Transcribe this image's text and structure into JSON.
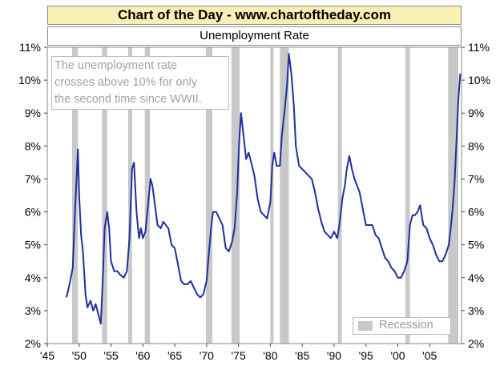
{
  "header": {
    "title": "Chart of the Day - www.chartoftheday.com"
  },
  "chart_data": {
    "type": "line",
    "title": "Unemployment Rate",
    "annotation_lines": [
      "The unemployment rate",
      "crosses above 10% for only",
      "the second time since WWII."
    ],
    "legend": {
      "label": "Recession",
      "color": "#c8c8c8",
      "position": "bottom-right"
    },
    "xlim": [
      1945,
      2010
    ],
    "ylim": [
      2,
      11
    ],
    "y_ticks": [
      2,
      3,
      4,
      5,
      6,
      7,
      8,
      9,
      10,
      11
    ],
    "y_tick_labels": [
      "2%",
      "3%",
      "4%",
      "5%",
      "6%",
      "7%",
      "8%",
      "9%",
      "10%",
      "11%"
    ],
    "x_ticks": [
      1945,
      1950,
      1955,
      1960,
      1965,
      1970,
      1975,
      1980,
      1985,
      1990,
      1995,
      2000,
      2005
    ],
    "x_tick_labels": [
      "'45",
      "'50",
      "'55",
      "'60",
      "'65",
      "'70",
      "'75",
      "'80",
      "'85",
      "'90",
      "'95",
      "'00",
      "'05"
    ],
    "grid": false,
    "line_color": "#1f2f9e",
    "recessions": [
      [
        1948.9,
        1949.8
      ],
      [
        1953.6,
        1954.4
      ],
      [
        1957.7,
        1958.3
      ],
      [
        1960.3,
        1961.1
      ],
      [
        1969.9,
        1970.9
      ],
      [
        1973.9,
        1975.2
      ],
      [
        1980.0,
        1980.5
      ],
      [
        1981.5,
        1982.9
      ],
      [
        1990.6,
        1991.2
      ],
      [
        2001.2,
        2001.9
      ],
      [
        2007.9,
        2009.5
      ]
    ],
    "series": [
      {
        "x": [
          1948.0,
          1948.5,
          1949.0,
          1949.3,
          1949.8,
          1950.0,
          1950.3,
          1950.6,
          1951.0,
          1951.3,
          1951.8,
          1952.2,
          1952.6,
          1953.0,
          1953.4,
          1953.7,
          1954.0,
          1954.4,
          1954.7,
          1955.0,
          1955.5,
          1956.0,
          1956.4,
          1957.0,
          1957.5,
          1957.9,
          1958.3,
          1958.6,
          1959.0,
          1959.4,
          1959.7,
          1960.0,
          1960.4,
          1960.8,
          1961.2,
          1961.5,
          1961.9,
          1962.3,
          1962.8,
          1963.2,
          1963.6,
          1964.0,
          1964.5,
          1965.0,
          1965.5,
          1966.0,
          1966.5,
          1967.0,
          1967.5,
          1968.0,
          1968.5,
          1969.0,
          1969.5,
          1970.0,
          1970.3,
          1970.7,
          1971.0,
          1971.5,
          1972.0,
          1972.5,
          1973.0,
          1973.5,
          1974.0,
          1974.4,
          1974.8,
          1975.1,
          1975.4,
          1975.8,
          1976.2,
          1976.6,
          1977.0,
          1977.5,
          1978.0,
          1978.5,
          1979.0,
          1979.5,
          1980.0,
          1980.3,
          1980.6,
          1981.0,
          1981.5,
          1981.8,
          1982.2,
          1982.6,
          1982.9,
          1983.3,
          1983.7,
          1984.0,
          1984.5,
          1985.0,
          1985.5,
          1986.0,
          1986.5,
          1987.0,
          1987.5,
          1988.0,
          1988.5,
          1989.0,
          1989.5,
          1990.0,
          1990.5,
          1990.9,
          1991.3,
          1991.7,
          1992.0,
          1992.4,
          1992.8,
          1993.2,
          1993.6,
          1994.0,
          1994.5,
          1995.0,
          1995.5,
          1996.0,
          1996.5,
          1997.0,
          1997.5,
          1998.0,
          1998.5,
          1999.0,
          1999.5,
          2000.0,
          2000.5,
          2001.0,
          2001.5,
          2001.9,
          2002.3,
          2002.7,
          2003.1,
          2003.5,
          2004.0,
          2004.5,
          2005.0,
          2005.5,
          2006.0,
          2006.5,
          2007.0,
          2007.5,
          2008.0,
          2008.3,
          2008.6,
          2008.9,
          2009.2,
          2009.5,
          2009.8
        ],
        "y": [
          3.4,
          3.8,
          4.3,
          5.8,
          7.9,
          6.5,
          5.3,
          4.8,
          3.5,
          3.1,
          3.3,
          3.0,
          3.2,
          2.9,
          2.6,
          3.9,
          5.5,
          6.0,
          5.5,
          4.5,
          4.2,
          4.2,
          4.1,
          4.0,
          4.2,
          5.2,
          7.3,
          7.5,
          6.0,
          5.2,
          5.5,
          5.2,
          5.4,
          6.2,
          7.0,
          6.8,
          6.2,
          5.6,
          5.5,
          5.7,
          5.6,
          5.5,
          5.0,
          4.9,
          4.4,
          3.9,
          3.8,
          3.8,
          3.9,
          3.7,
          3.5,
          3.4,
          3.5,
          3.9,
          4.6,
          5.5,
          6.0,
          6.0,
          5.8,
          5.6,
          4.9,
          4.8,
          5.1,
          5.5,
          6.6,
          8.1,
          9.0,
          8.3,
          7.6,
          7.8,
          7.5,
          7.1,
          6.4,
          6.0,
          5.9,
          5.8,
          6.3,
          7.4,
          7.8,
          7.4,
          7.4,
          8.3,
          9.0,
          9.8,
          10.8,
          10.2,
          9.2,
          8.0,
          7.4,
          7.3,
          7.2,
          7.1,
          7.0,
          6.6,
          6.1,
          5.7,
          5.4,
          5.3,
          5.2,
          5.4,
          5.2,
          5.7,
          6.4,
          6.8,
          7.3,
          7.7,
          7.3,
          7.0,
          6.8,
          6.6,
          6.1,
          5.6,
          5.6,
          5.6,
          5.3,
          5.2,
          4.9,
          4.6,
          4.5,
          4.3,
          4.2,
          4.0,
          4.0,
          4.2,
          4.5,
          5.6,
          5.9,
          5.9,
          6.0,
          6.2,
          5.6,
          5.5,
          5.2,
          5.0,
          4.7,
          4.5,
          4.5,
          4.7,
          5.0,
          5.5,
          6.1,
          6.9,
          8.1,
          9.4,
          10.2
        ],
        "color": "#1f2f9e"
      }
    ]
  }
}
